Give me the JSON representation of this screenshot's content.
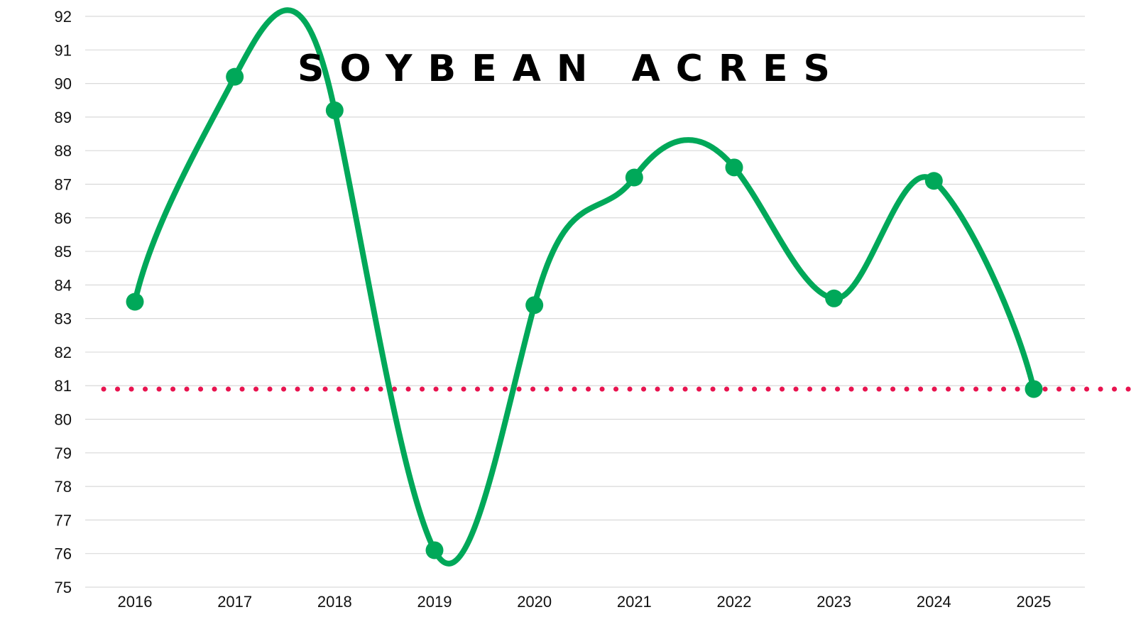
{
  "chart_data": {
    "type": "line",
    "title": "SOYBEAN ACRES",
    "xlabel": "",
    "ylabel": "",
    "categories": [
      "2016",
      "2017",
      "2018",
      "2019",
      "2020",
      "2021",
      "2022",
      "2023",
      "2024",
      "2025"
    ],
    "series": [
      {
        "values": [
          83.5,
          90.2,
          89.2,
          76.1,
          83.4,
          87.2,
          87.5,
          83.6,
          87.1,
          80.9
        ]
      }
    ],
    "reference_line": {
      "value": 80.9,
      "style": "dotted"
    },
    "ylim": [
      75,
      92
    ],
    "yticks": [
      "92",
      "91",
      "90",
      "89",
      "88",
      "87",
      "86",
      "85",
      "84",
      "83",
      "82",
      "81",
      "80",
      "79",
      "78",
      "77",
      "76",
      "75"
    ],
    "grid": true,
    "smooth": true,
    "colors": {
      "line": "#00a859",
      "reference": "#e8134f",
      "grid": "#d9d9d9"
    }
  }
}
